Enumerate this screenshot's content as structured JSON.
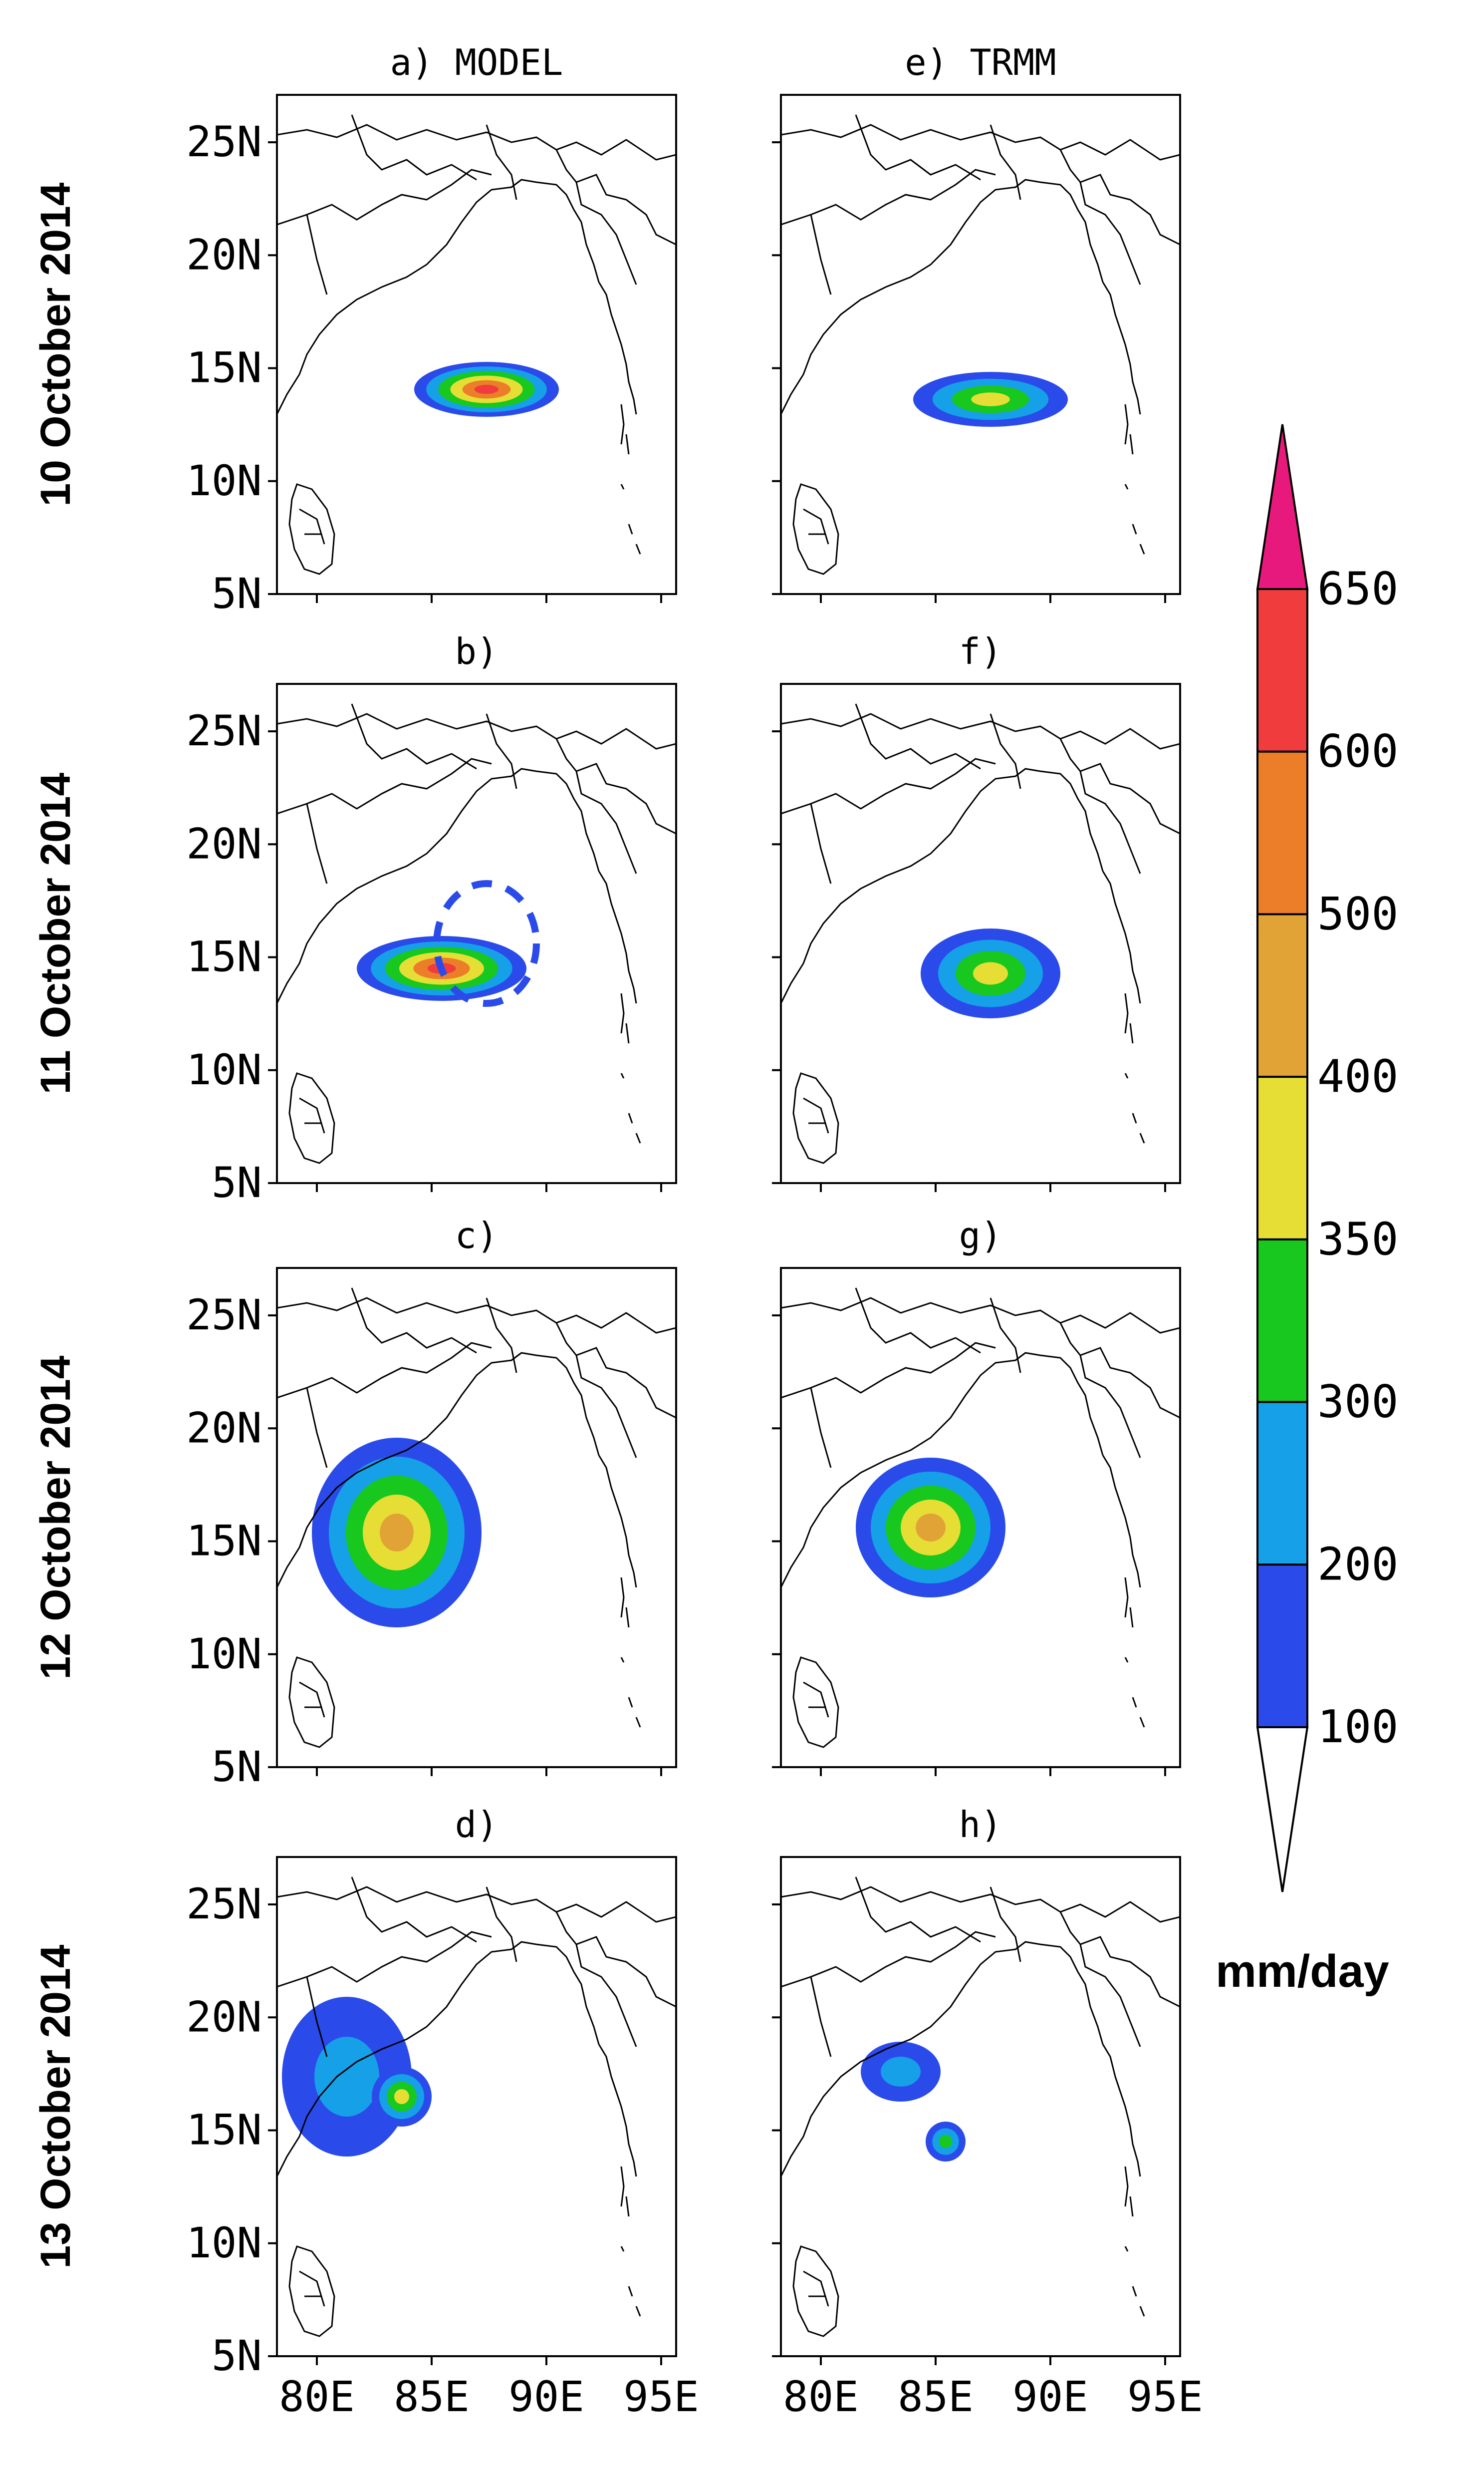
{
  "columns": [
    {
      "title": "a)  MODEL"
    },
    {
      "title": "e)  TRMM"
    }
  ],
  "panels": [
    {
      "label": "a)  MODEL",
      "col": 0,
      "row": 0
    },
    {
      "label": "b)",
      "col": 0,
      "row": 1
    },
    {
      "label": "c)",
      "col": 0,
      "row": 2
    },
    {
      "label": "d)",
      "col": 0,
      "row": 3
    },
    {
      "label": "e)  TRMM",
      "col": 1,
      "row": 0
    },
    {
      "label": "f)",
      "col": 1,
      "row": 1
    },
    {
      "label": "g)",
      "col": 1,
      "row": 2
    },
    {
      "label": "h)",
      "col": 1,
      "row": 3
    }
  ],
  "rows": [
    {
      "date": "10 October 2014"
    },
    {
      "date": "11 October 2014"
    },
    {
      "date": "12  October 2014"
    },
    {
      "date": "13 October 2014"
    }
  ],
  "lat_ticks": [
    "25N",
    "20N",
    "15N",
    "10N",
    "5N"
  ],
  "lon_ticks": [
    "80E",
    "85E",
    "90E",
    "95E"
  ],
  "colorbar": {
    "unit": "mm/day",
    "levels": [
      "100",
      "200",
      "300",
      "350",
      "400",
      "500",
      "600",
      "650"
    ],
    "colors": [
      "#ffffff",
      "#2a4bea",
      "#16a0e8",
      "#18c81e",
      "#e6de34",
      "#e1a336",
      "#ec7e2a",
      "#f03c3c",
      "#e8197c"
    ]
  }
}
